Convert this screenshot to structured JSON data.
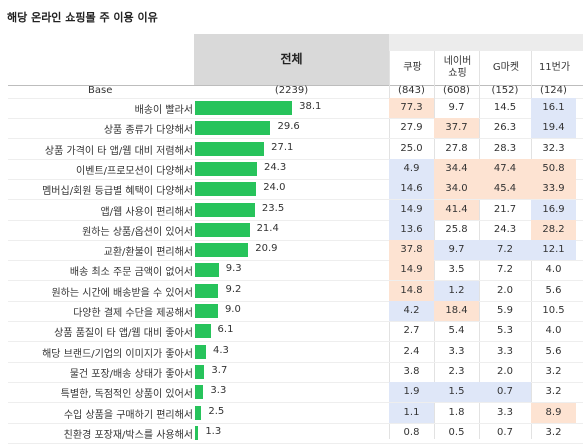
{
  "title": "해당 온라인 쇼핑몰 주 이용 이유",
  "chart_data": {
    "type": "bar",
    "title": "해당 온라인 쇼핑몰 주 이용 이유",
    "total_label": "전체",
    "base_label": "Base",
    "total_base": "(2239)",
    "columns": [
      {
        "name": "쿠팡",
        "base": "(843)"
      },
      {
        "name": "네이버\n쇼핑",
        "base": "(608)"
      },
      {
        "name": "G마켓",
        "base": "(152)"
      },
      {
        "name": "11번가",
        "base": "(124)"
      }
    ],
    "categories": [
      "배송이 빨라서",
      "상품 종류가 다양해서",
      "상품 가격이 타 앱/웹 대비 저렴해서",
      "이벤트/프로모션이 다양해서",
      "멤버십/회원 등급별 혜택이 다양해서",
      "앱/웹 사용이 편리해서",
      "원하는 상품/옵션이 있어서",
      "교환/환불이 편리해서",
      "배송 최소 주문 금액이 없어서",
      "원하는 시간에 배송받을 수 있어서",
      "다양한 결제 수단을 제공해서",
      "상품 품질이 타 앱/웹 대비 좋아서",
      "해당 브랜드/기업의 이미지가 좋아서",
      "물건 포장/배송 상태가 좋아서",
      "특별한, 독점적인 상품이 있어서",
      "수입 상품을 구매하기 편리해서",
      "친환경 포장재/박스를 사용해서"
    ],
    "total_values": [
      38.1,
      29.6,
      27.1,
      24.3,
      24.0,
      23.5,
      21.4,
      20.9,
      9.3,
      9.2,
      9.0,
      6.1,
      4.3,
      3.7,
      3.3,
      2.5,
      1.3
    ],
    "table_values": [
      [
        "77.3",
        "9.7",
        "14.5",
        "16.1"
      ],
      [
        "27.9",
        "37.7",
        "26.3",
        "19.4"
      ],
      [
        "25.0",
        "27.8",
        "28.3",
        "32.3"
      ],
      [
        "4.9",
        "34.4",
        "47.4",
        "50.8"
      ],
      [
        "14.6",
        "34.0",
        "45.4",
        "33.9"
      ],
      [
        "14.9",
        "41.4",
        "21.7",
        "16.9"
      ],
      [
        "13.6",
        "25.8",
        "24.3",
        "28.2"
      ],
      [
        "37.8",
        "9.7",
        "7.2",
        "12.1"
      ],
      [
        "14.9",
        "3.5",
        "7.2",
        "4.0"
      ],
      [
        "14.8",
        "1.2",
        "2.0",
        "5.6"
      ],
      [
        "4.2",
        "18.4",
        "5.9",
        "10.5"
      ],
      [
        "2.7",
        "5.4",
        "5.3",
        "4.0"
      ],
      [
        "2.4",
        "3.3",
        "3.3",
        "5.6"
      ],
      [
        "3.8",
        "2.3",
        "2.0",
        "3.2"
      ],
      [
        "1.9",
        "1.5",
        "0.7",
        "3.2"
      ],
      [
        "1.1",
        "1.8",
        "3.3",
        "8.9"
      ],
      [
        "0.8",
        "0.5",
        "0.7",
        "3.2"
      ]
    ],
    "highlight": [
      [
        "hi",
        "",
        "",
        "lo"
      ],
      [
        "",
        "hi",
        "",
        "lo"
      ],
      [
        "",
        "",
        "",
        ""
      ],
      [
        "lo",
        "hi",
        "hi",
        "hi"
      ],
      [
        "lo",
        "hi",
        "hi",
        "hi"
      ],
      [
        "lo",
        "hi",
        "",
        "lo"
      ],
      [
        "lo",
        "",
        "",
        "hi"
      ],
      [
        "hi",
        "lo",
        "lo",
        "lo"
      ],
      [
        "hi",
        "",
        "",
        ""
      ],
      [
        "hi",
        "lo",
        "",
        ""
      ],
      [
        "lo",
        "hi",
        "",
        ""
      ],
      [
        "",
        "",
        "",
        ""
      ],
      [
        "",
        "",
        "",
        ""
      ],
      [
        "",
        "",
        "",
        ""
      ],
      [
        "lo",
        "lo",
        "lo",
        ""
      ],
      [
        "lo",
        "",
        "",
        "hi"
      ],
      [
        "",
        "",
        "",
        ""
      ]
    ],
    "colors": {
      "bar": "#27c35b",
      "high": "#fde3d2",
      "low": "#dfe7f8"
    },
    "xlim": [
      0,
      100
    ]
  }
}
